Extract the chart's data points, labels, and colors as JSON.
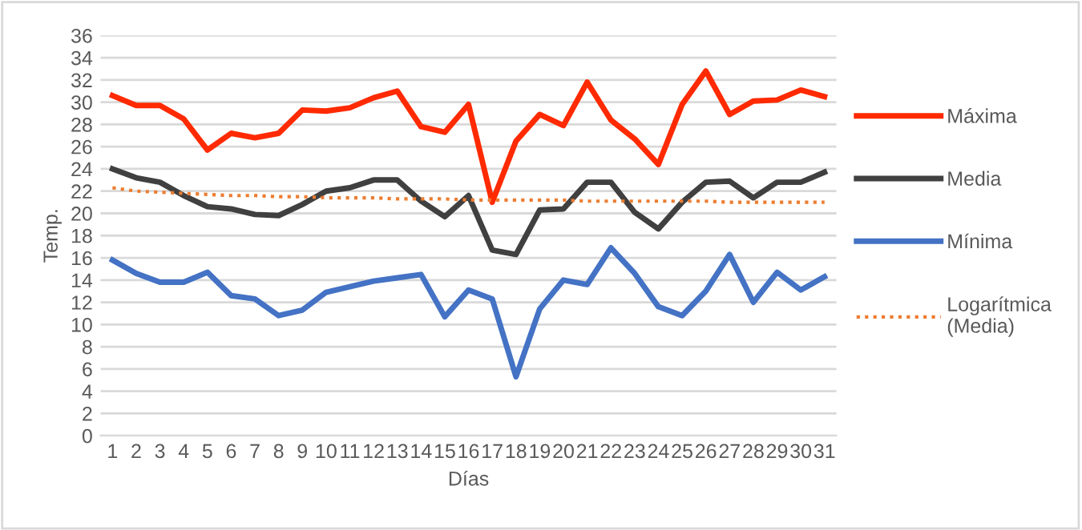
{
  "chart_data": {
    "type": "line",
    "xlabel": "Días",
    "ylabel": "Temp.",
    "categories": [
      "1",
      "2",
      "3",
      "4",
      "5",
      "6",
      "7",
      "8",
      "9",
      "10",
      "11",
      "12",
      "13",
      "14",
      "15",
      "16",
      "17",
      "18",
      "19",
      "20",
      "21",
      "22",
      "23",
      "24",
      "25",
      "26",
      "27",
      "28",
      "29",
      "30",
      "31"
    ],
    "series": [
      {
        "name": "Máxima",
        "color": "#ff2a00",
        "values": [
          30.6,
          29.7,
          29.7,
          28.5,
          25.7,
          27.2,
          26.8,
          27.2,
          29.3,
          29.2,
          29.5,
          30.4,
          31.0,
          27.8,
          27.3,
          29.8,
          21.0,
          26.5,
          28.9,
          27.9,
          31.8,
          28.4,
          26.7,
          24.4,
          29.8,
          32.8,
          28.9,
          30.1,
          30.2,
          31.1,
          30.5
        ]
      },
      {
        "name": "Media",
        "color": "#404040",
        "values": [
          24.0,
          23.2,
          22.8,
          21.6,
          20.6,
          20.4,
          19.9,
          19.8,
          20.8,
          22.0,
          22.3,
          23.0,
          23.0,
          21.1,
          19.7,
          21.6,
          16.7,
          16.3,
          20.3,
          20.4,
          22.8,
          22.8,
          20.1,
          18.6,
          21.0,
          22.8,
          22.9,
          21.4,
          22.8,
          22.8,
          23.7
        ]
      },
      {
        "name": "Mínima",
        "color": "#4472c4",
        "values": [
          15.8,
          14.6,
          13.8,
          13.8,
          14.7,
          12.6,
          12.3,
          10.8,
          11.3,
          12.9,
          13.4,
          13.9,
          14.2,
          14.5,
          10.7,
          13.1,
          12.3,
          5.3,
          11.4,
          14.0,
          13.6,
          16.9,
          14.6,
          11.6,
          10.8,
          13.0,
          16.3,
          12.0,
          14.7,
          13.1,
          14.3
        ]
      },
      {
        "name": "Logarítmica (Media)",
        "color": "#ed7d31",
        "line_style": "dotted",
        "values": [
          22.3,
          22.0,
          21.9,
          21.8,
          21.7,
          21.6,
          21.6,
          21.5,
          21.5,
          21.4,
          21.4,
          21.4,
          21.3,
          21.3,
          21.3,
          21.2,
          21.2,
          21.2,
          21.2,
          21.2,
          21.1,
          21.1,
          21.1,
          21.1,
          21.1,
          21.1,
          21.0,
          21.0,
          21.0,
          21.0,
          21.0
        ]
      }
    ],
    "ylim": [
      0,
      36
    ],
    "yticks": [
      0,
      2,
      4,
      6,
      8,
      10,
      12,
      14,
      16,
      18,
      20,
      22,
      24,
      26,
      28,
      30,
      32,
      34,
      36
    ],
    "grid": "y",
    "legend": "right",
    "line_style": "solid",
    "marker": "none"
  }
}
